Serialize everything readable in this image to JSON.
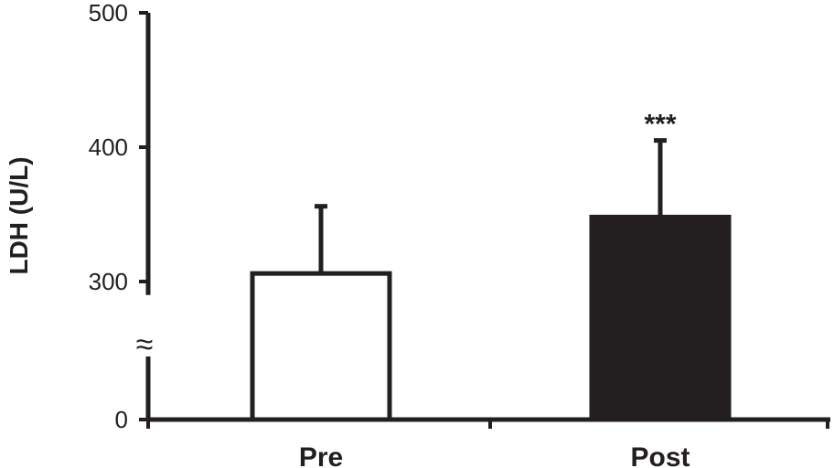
{
  "chart_data": {
    "type": "bar",
    "title": "",
    "xlabel": "",
    "ylabel": "LDH (U/L)",
    "categories": [
      "Pre",
      "Post"
    ],
    "values": [
      306,
      348
    ],
    "error_upper": [
      356,
      405
    ],
    "annotations": [
      "",
      "***"
    ],
    "bar_fills": [
      "#ffffff",
      "#231f20"
    ],
    "bar_stroke": "#231f20",
    "ylim": [
      0,
      500
    ],
    "axis_break": {
      "from": 0,
      "to": 290,
      "symbol": "≈"
    },
    "y_ticks": [
      {
        "value": 0,
        "label": "0"
      },
      {
        "value": 300,
        "label": "300"
      },
      {
        "value": 400,
        "label": "400"
      },
      {
        "value": 500,
        "label": "500"
      }
    ],
    "grid": false,
    "legend": "none"
  }
}
